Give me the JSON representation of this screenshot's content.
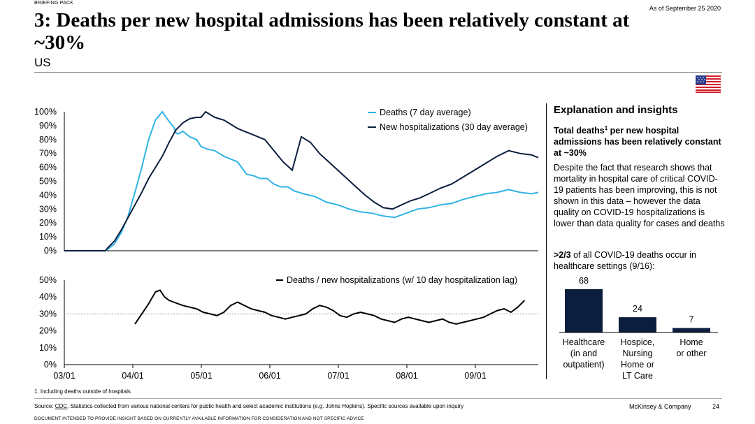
{
  "header": {
    "top_label": "BRIEFING PACK",
    "date": "As of September 25 2020",
    "title": "3: Deaths per new hospital admissions has been relatively constant at ~30%",
    "subtitle": "US",
    "flag_icon": "us-flag-icon"
  },
  "panel": {
    "title": "Explanation and insights",
    "bold_pre": "Total deaths",
    "bold_sup": "1",
    "bold_post": " per new hospital admissions has been relatively constant at ~30%",
    "body": "Despite the fact that research shows that mortality in hospital care of critical COVID-19 patients has been improving, this is not shown in this data – however the data quality on COVID-19 hospitalizations is lower than data quality for cases and deaths",
    "b2_bold": ">2/3",
    "b2_rest": " of all COVID-19 deaths occur in healthcare settings (9/16):"
  },
  "chart_data": [
    {
      "type": "line",
      "title": "",
      "ylim": [
        0,
        100
      ],
      "yticks": [
        "0%",
        "10%",
        "20%",
        "30%",
        "40%",
        "50%",
        "60%",
        "70%",
        "80%",
        "90%",
        "100%"
      ],
      "xlim": [
        0,
        208
      ],
      "series": [
        {
          "name": "Deaths (7 day average)",
          "color": "#2fb3e6",
          "x": [
            0,
            18,
            19,
            22,
            25,
            28,
            31,
            34,
            37,
            40,
            43,
            46,
            48,
            49,
            50,
            52,
            55,
            58,
            60,
            63,
            66,
            68,
            70,
            73,
            76,
            80,
            83,
            86,
            89,
            92,
            95,
            98,
            101,
            105,
            110,
            115,
            120,
            125,
            130,
            135,
            140,
            145,
            150,
            155,
            160,
            165,
            170,
            175,
            180,
            185,
            190,
            195,
            200,
            205,
            208
          ],
          "values": [
            0,
            0,
            1,
            5,
            13,
            25,
            42,
            60,
            80,
            94,
            100,
            93,
            89,
            85,
            84,
            86,
            82,
            80,
            75,
            73,
            72,
            70,
            68,
            66,
            64,
            55,
            54,
            52,
            52,
            48,
            46,
            46,
            43,
            41,
            39,
            35,
            33,
            30,
            28,
            27,
            25,
            24,
            27,
            30,
            31,
            33,
            34,
            37,
            39,
            41,
            42,
            44,
            42,
            41,
            42
          ]
        },
        {
          "name": "New hospitalizations (30 day average)",
          "color": "#0b1e3d",
          "x": [
            0,
            18,
            19,
            22,
            25,
            28,
            31,
            34,
            37,
            40,
            43,
            46,
            49,
            52,
            55,
            58,
            60,
            62,
            64,
            66,
            68,
            70,
            73,
            76,
            79,
            82,
            85,
            88,
            92,
            96,
            100,
            104,
            108,
            112,
            116,
            120,
            124,
            128,
            132,
            136,
            140,
            144,
            148,
            152,
            156,
            160,
            165,
            170,
            175,
            180,
            185,
            190,
            195,
            200,
            205,
            208
          ],
          "values": [
            0,
            0,
            2,
            7,
            15,
            24,
            33,
            42,
            52,
            60,
            68,
            78,
            87,
            92,
            95,
            96,
            96,
            100,
            98,
            96,
            95,
            94,
            91,
            88,
            86,
            84,
            82,
            80,
            72,
            64,
            58,
            82,
            78,
            70,
            64,
            58,
            52,
            46,
            40,
            35,
            31,
            30,
            33,
            36,
            38,
            41,
            45,
            48,
            53,
            58,
            63,
            68,
            72,
            70,
            69,
            67
          ]
        }
      ],
      "legend_placement": "top-right"
    },
    {
      "type": "line",
      "title": "",
      "ylim": [
        0,
        50
      ],
      "yticks": [
        "0%",
        "10%",
        "20%",
        "30%",
        "40%",
        "50%"
      ],
      "xtick_labels": [
        "03/01",
        "04/01",
        "05/01",
        "06/01",
        "07/01",
        "08/01",
        "09/01"
      ],
      "reference_line": 30,
      "series": [
        {
          "name": "Deaths / new hospitalizations (w/ 10 day hospitalization lag)",
          "color": "#000000",
          "x": [
            31,
            34,
            37,
            40,
            42,
            44,
            46,
            48,
            50,
            52,
            55,
            58,
            61,
            64,
            67,
            70,
            73,
            76,
            79,
            82,
            85,
            88,
            91,
            94,
            97,
            100,
            103,
            106,
            109,
            112,
            115,
            118,
            121,
            124,
            127,
            130,
            133,
            136,
            139,
            142,
            145,
            148,
            151,
            154,
            157,
            160,
            163,
            166,
            169,
            172,
            175,
            178,
            181,
            184,
            187,
            190,
            193,
            196,
            199,
            202
          ],
          "values": [
            24,
            30,
            36,
            43,
            44,
            40,
            38,
            37,
            36,
            35,
            34,
            33,
            31,
            30,
            29,
            31,
            35,
            37,
            35,
            33,
            32,
            31,
            29,
            28,
            27,
            28,
            29,
            30,
            33,
            35,
            34,
            32,
            29,
            28,
            30,
            31,
            30,
            29,
            27,
            26,
            25,
            27,
            28,
            27,
            26,
            25,
            26,
            27,
            25,
            24,
            25,
            26,
            27,
            28,
            30,
            32,
            33,
            31,
            34,
            38
          ]
        }
      ],
      "legend_placement": "top-right"
    },
    {
      "type": "bar",
      "categories": [
        "Healthcare (in and outpatient)",
        "Hospice, Nursing Home or LT Care",
        "Home or other"
      ],
      "category_lines": [
        [
          "Healthcare",
          "(in and",
          "outpatient)"
        ],
        [
          "Hospice,",
          "Nursing",
          "Home or",
          "LT Care"
        ],
        [
          "Home",
          "or other"
        ]
      ],
      "values": [
        68,
        24,
        7
      ],
      "ylim": [
        0,
        68
      ],
      "color": "#0b1e3d"
    }
  ],
  "footer": {
    "footnote": "1. Including deaths outside of hospitals",
    "source_label": "Source: ",
    "source_link": "CDC",
    "source_rest": ", Statistics collected from various national centers for public health and select academic institutions (e.g. Johns Hopkins). Specific sources available upon inquiry",
    "company": "McKinsey & Company",
    "page": "24",
    "disclaimer": "DOCUMENT INTENDED TO PROVIDE INSIGHT BASED ON CURRENTLY AVAILABLE INFORMATION FOR CONSIDERATION AND NOT SPECIFIC ADVICE"
  }
}
